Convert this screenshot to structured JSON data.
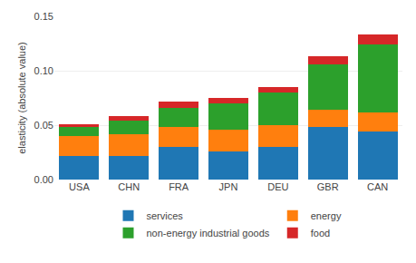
{
  "chart_data": {
    "type": "bar",
    "stacked": true,
    "categories": [
      "USA",
      "CHN",
      "FRA",
      "JPN",
      "DEU",
      "GBR",
      "CAN"
    ],
    "series": [
      {
        "name": "services",
        "values": [
          0.022,
          0.022,
          0.03,
          0.026,
          0.03,
          0.048,
          0.044
        ]
      },
      {
        "name": "energy",
        "values": [
          0.018,
          0.02,
          0.018,
          0.02,
          0.02,
          0.016,
          0.018
        ]
      },
      {
        "name": "non-energy industrial goods",
        "values": [
          0.008,
          0.012,
          0.018,
          0.024,
          0.03,
          0.042,
          0.062
        ]
      },
      {
        "name": "food",
        "values": [
          0.003,
          0.004,
          0.006,
          0.005,
          0.005,
          0.007,
          0.009
        ]
      }
    ],
    "ylabel": "elasticity (absolute value)",
    "ylim": [
      0.0,
      0.15
    ],
    "yticks": [
      {
        "value": 0,
        "label": "0.00"
      },
      0.05,
      {
        "value": 0.1,
        "label": "0.10"
      },
      0.15
    ],
    "grid": true,
    "legend": "bottom"
  }
}
